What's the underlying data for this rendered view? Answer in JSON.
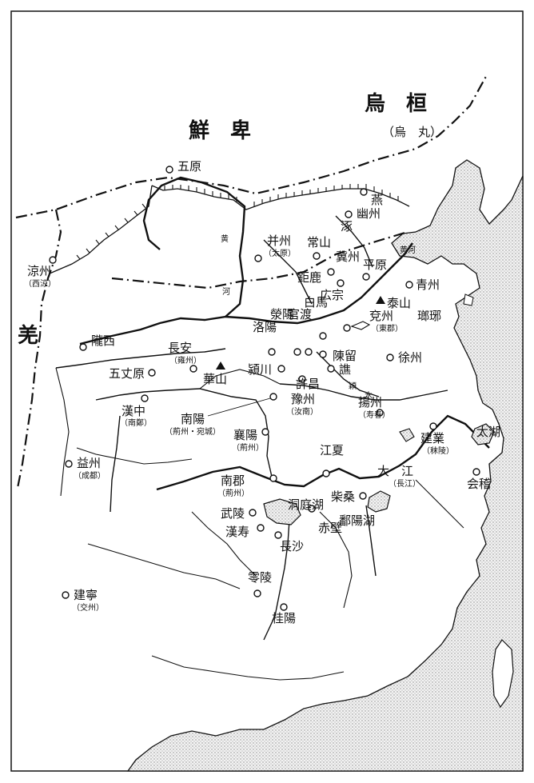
{
  "regions": {
    "wuhuan": "烏　桓",
    "wuhuan_sub": "（烏　丸）",
    "xianbei": "鮮　卑",
    "qiang": "羌"
  },
  "places": {
    "wuyuan": "五原",
    "yan": "燕",
    "youzhou": "幽州",
    "zhuo": "涿",
    "bingzhou": "并州",
    "bingzhou_sub": "（太原）",
    "changshan": "常山",
    "jizhou": "冀州",
    "pingyuan": "平原",
    "julu": "鉅鹿",
    "guangzong": "広宗",
    "qingzhou": "青州",
    "liangzhou": "涼州",
    "liangzhou_sub": "（西涼）",
    "taishan": "泰山",
    "langya": "瑯琊",
    "baima": "白馬",
    "guandu": "官渡",
    "xingyang": "滎陽",
    "luoyang": "洛陽",
    "yanzhou": "兗州",
    "yanzhou_sub": "（東郡）",
    "longxi": "隴西",
    "changan": "長安",
    "changan_sub": "（雍州）",
    "chenliu": "陳留",
    "xuzhou": "徐州",
    "qiao": "譙",
    "wuzhangyuan": "五丈原",
    "huashan": "華山",
    "yingchuan": "潁川",
    "xuchang": "許昌",
    "yuzhou": "豫州",
    "yuzhou_sub": "（汝南）",
    "hanzhong": "漢中",
    "hanzhong_sub": "（南鄭）",
    "nanyang": "南陽",
    "nanyang_sub": "（荊州・宛城）",
    "yangzhou": "揚州",
    "yangzhou_sub": "（寿春）",
    "xiangyang": "襄陽",
    "xiangyang_sub": "（荊州）",
    "jianye": "建業",
    "jianye_sub": "（秣陵）",
    "taihu": "太湖",
    "yizhou": "益州",
    "yizhou_sub": "（成都）",
    "jiangxia": "江夏",
    "kuaiji": "会稽",
    "nanjun": "南郡",
    "nanjun_sub": "（荊州）",
    "chaisang": "柴桑",
    "wuling": "武陵",
    "dongtinghu": "洞庭湖",
    "chibi": "赤壁",
    "poyanghu": "鄱陽湖",
    "hanshou": "漢寿",
    "changsha": "長沙",
    "lingling": "零陵",
    "jianning": "建寧",
    "jianning_sub": "（交州）",
    "guiyang": "桂陽"
  },
  "rivers": {
    "huanghe_upper": "黄",
    "huanghe_lower": "河",
    "huanghe_delta": "黄河",
    "yingshui": "穎",
    "yingshui2": "水",
    "dajiang": "大　江",
    "dajiang_sub": "（長江）"
  },
  "colors": {
    "ink": "#111111",
    "paper": "#ffffff",
    "sea_dot": "#9a9a9a"
  }
}
